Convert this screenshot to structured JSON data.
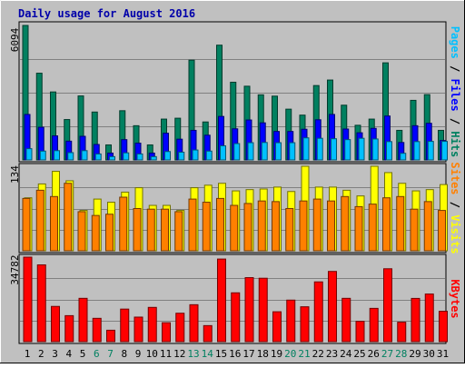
{
  "title": "Daily usage for August 2016",
  "colors": {
    "frame_bg": "#c0c0c0",
    "title": "#0000aa",
    "hits": "#008060",
    "files": "#0000ff",
    "pages": "#00c0ff",
    "visits": "#ffff00",
    "sites": "#ff8000",
    "kbytes": "#ff0000",
    "weekday_label": "#000000",
    "weekend_label": "#008060"
  },
  "axis_labels": {
    "hits_panel_max": "6094",
    "visits_panel_max": "134",
    "kbytes_panel_max": "34782"
  },
  "side_labels": {
    "pages": "Pages",
    "files": "Files",
    "hits": "Hits",
    "visits": "Visits",
    "sites": "Sites",
    "kbytes": "KBytes",
    "sep": " / "
  },
  "chart_data": [
    {
      "type": "bar",
      "panel": "hits-files-pages",
      "categories": [
        "1",
        "2",
        "3",
        "4",
        "5",
        "6",
        "7",
        "8",
        "9",
        "10",
        "11",
        "12",
        "13",
        "14",
        "15",
        "16",
        "17",
        "18",
        "19",
        "20",
        "21",
        "22",
        "23",
        "24",
        "25",
        "26",
        "27",
        "28",
        "29",
        "30",
        "31"
      ],
      "ylim": [
        0,
        6094
      ],
      "ytick": "6094",
      "series": [
        {
          "name": "Hits",
          "values": [
            6094,
            3930,
            3080,
            1830,
            2900,
            2170,
            680,
            2230,
            1550,
            680,
            1850,
            1890,
            4520,
            1720,
            5200,
            3520,
            3340,
            2950,
            2890,
            2300,
            2030,
            3370,
            3620,
            2480,
            1570,
            1850,
            4400,
            1340,
            2700,
            2960,
            1340
          ]
        },
        {
          "name": "Files",
          "values": [
            2060,
            1480,
            1090,
            850,
            1070,
            700,
            310,
            920,
            760,
            310,
            1210,
            940,
            1340,
            1120,
            1970,
            1410,
            1810,
            1680,
            1290,
            1290,
            1390,
            1820,
            2060,
            1400,
            1230,
            1430,
            1990,
            790,
            1550,
            1660,
            880
          ]
        },
        {
          "name": "Pages",
          "values": [
            510,
            400,
            420,
            330,
            420,
            270,
            150,
            320,
            270,
            150,
            380,
            350,
            450,
            400,
            640,
            740,
            780,
            790,
            780,
            780,
            1000,
            980,
            960,
            920,
            980,
            950,
            830,
            300,
            830,
            840,
            840
          ]
        }
      ]
    },
    {
      "type": "bar",
      "panel": "visits-sites",
      "categories": [
        "1",
        "2",
        "3",
        "4",
        "5",
        "6",
        "7",
        "8",
        "9",
        "10",
        "11",
        "12",
        "13",
        "14",
        "15",
        "16",
        "17",
        "18",
        "19",
        "20",
        "21",
        "22",
        "23",
        "24",
        "25",
        "26",
        "27",
        "28",
        "29",
        "30",
        "31"
      ],
      "ylim": [
        0,
        134
      ],
      "ytick": "134",
      "series": [
        {
          "name": "Visits",
          "values": [
            84,
            106,
            126,
            111,
            64,
            82,
            77,
            93,
            100,
            72,
            72,
            64,
            100,
            104,
            107,
            95,
            97,
            98,
            101,
            94,
            134,
            101,
            101,
            96,
            87,
            134,
            124,
            107,
            95,
            97,
            105
          ]
        },
        {
          "name": "Sites",
          "values": [
            83,
            96,
            86,
            107,
            62,
            56,
            58,
            85,
            67,
            66,
            66,
            62,
            82,
            77,
            83,
            72,
            75,
            79,
            78,
            67,
            79,
            82,
            79,
            86,
            70,
            74,
            84,
            86,
            66,
            78,
            64
          ]
        }
      ]
    },
    {
      "type": "bar",
      "panel": "kbytes",
      "categories": [
        "1",
        "2",
        "3",
        "4",
        "5",
        "6",
        "7",
        "8",
        "9",
        "10",
        "11",
        "12",
        "13",
        "14",
        "15",
        "16",
        "17",
        "18",
        "19",
        "20",
        "21",
        "22",
        "23",
        "24",
        "25",
        "26",
        "27",
        "28",
        "29",
        "30",
        "31"
      ],
      "ylim": [
        0,
        34782
      ],
      "ytick": "34782",
      "series": [
        {
          "name": "KBytes",
          "values": [
            34782,
            31600,
            14500,
            10700,
            17830,
            9600,
            4700,
            13400,
            10100,
            14100,
            7800,
            11700,
            15200,
            6600,
            34000,
            20100,
            26350,
            26100,
            12300,
            17100,
            14350,
            24600,
            28900,
            17830,
            8350,
            13700,
            30000,
            8000,
            17800,
            19600,
            12500
          ]
        }
      ]
    }
  ]
}
